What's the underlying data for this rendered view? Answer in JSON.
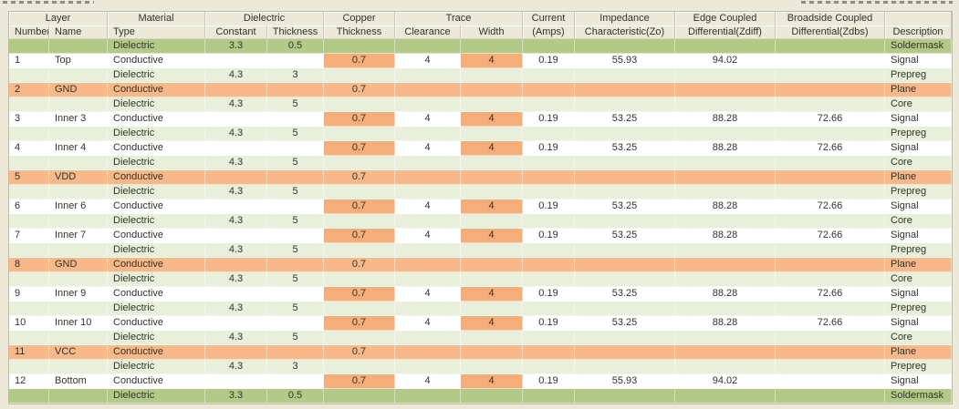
{
  "colors": {
    "header_beige": "#ece9d8",
    "plane_orange": "#f7b98a",
    "highlight_orange": "#f5ae79",
    "soldermask_green": "#b3c987",
    "dielectric_green": "#e8f0db",
    "row_white": "#ffffff",
    "text": "#33332b"
  },
  "table": {
    "group_headers": [
      {
        "label": "Layer",
        "span": 2
      },
      {
        "label": "Material",
        "span": 1
      },
      {
        "label": "Dielectric",
        "span": 2
      },
      {
        "label": "Copper",
        "span": 1
      },
      {
        "label": "Trace",
        "span": 2
      },
      {
        "label": "Current",
        "span": 1
      },
      {
        "label": "Impedance",
        "span": 1
      },
      {
        "label": "Edge Coupled",
        "span": 1
      },
      {
        "label": "Broadside Coupled",
        "span": 1
      },
      {
        "label": "",
        "span": 1
      }
    ],
    "sub_headers": [
      "Number",
      "Name",
      "Type",
      "Constant",
      "Thickness",
      "Thickness",
      "Clearance",
      "Width",
      "(Amps)",
      "Characteristic(Zo)",
      "Differential(Zdiff)",
      "Differential(Zdbs)",
      "Description"
    ],
    "rows": [
      {
        "style": "soldermask",
        "number": "",
        "name": "",
        "type": "Dielectric",
        "constant": "3.3",
        "dielectric_thickness": "0.5",
        "copper_thickness": "",
        "clearance": "",
        "width": "",
        "amps": "",
        "zo": "",
        "zdiff": "",
        "zdbs": "",
        "description": "Soldermask"
      },
      {
        "style": "signal",
        "number": "1",
        "name": "Top",
        "type": "Conductive",
        "constant": "",
        "dielectric_thickness": "",
        "copper_thickness": "0.7",
        "clearance": "4",
        "width": "4",
        "amps": "0.19",
        "zo": "55.93",
        "zdiff": "94.02",
        "zdbs": "",
        "description": "Signal"
      },
      {
        "style": "dielectric",
        "number": "",
        "name": "",
        "type": "Dielectric",
        "constant": "4.3",
        "dielectric_thickness": "3",
        "copper_thickness": "",
        "clearance": "",
        "width": "",
        "amps": "",
        "zo": "",
        "zdiff": "",
        "zdbs": "",
        "description": "Prepreg"
      },
      {
        "style": "plane",
        "number": "2",
        "name": "GND",
        "type": "Conductive",
        "constant": "",
        "dielectric_thickness": "",
        "copper_thickness": "0.7",
        "clearance": "",
        "width": "",
        "amps": "",
        "zo": "",
        "zdiff": "",
        "zdbs": "",
        "description": "Plane"
      },
      {
        "style": "dielectric",
        "number": "",
        "name": "",
        "type": "Dielectric",
        "constant": "4.3",
        "dielectric_thickness": "5",
        "copper_thickness": "",
        "clearance": "",
        "width": "",
        "amps": "",
        "zo": "",
        "zdiff": "",
        "zdbs": "",
        "description": "Core"
      },
      {
        "style": "signal",
        "number": "3",
        "name": "Inner 3",
        "type": "Conductive",
        "constant": "",
        "dielectric_thickness": "",
        "copper_thickness": "0.7",
        "clearance": "4",
        "width": "4",
        "amps": "0.19",
        "zo": "53.25",
        "zdiff": "88.28",
        "zdbs": "72.66",
        "description": "Signal"
      },
      {
        "style": "dielectric",
        "number": "",
        "name": "",
        "type": "Dielectric",
        "constant": "4.3",
        "dielectric_thickness": "5",
        "copper_thickness": "",
        "clearance": "",
        "width": "",
        "amps": "",
        "zo": "",
        "zdiff": "",
        "zdbs": "",
        "description": "Prepreg"
      },
      {
        "style": "signal",
        "number": "4",
        "name": "Inner 4",
        "type": "Conductive",
        "constant": "",
        "dielectric_thickness": "",
        "copper_thickness": "0.7",
        "clearance": "4",
        "width": "4",
        "amps": "0.19",
        "zo": "53.25",
        "zdiff": "88.28",
        "zdbs": "72.66",
        "description": "Signal"
      },
      {
        "style": "dielectric",
        "number": "",
        "name": "",
        "type": "Dielectric",
        "constant": "4.3",
        "dielectric_thickness": "5",
        "copper_thickness": "",
        "clearance": "",
        "width": "",
        "amps": "",
        "zo": "",
        "zdiff": "",
        "zdbs": "",
        "description": "Core"
      },
      {
        "style": "plane",
        "number": "5",
        "name": "VDD",
        "type": "Conductive",
        "constant": "",
        "dielectric_thickness": "",
        "copper_thickness": "0.7",
        "clearance": "",
        "width": "",
        "amps": "",
        "zo": "",
        "zdiff": "",
        "zdbs": "",
        "description": "Plane"
      },
      {
        "style": "dielectric",
        "number": "",
        "name": "",
        "type": "Dielectric",
        "constant": "4.3",
        "dielectric_thickness": "5",
        "copper_thickness": "",
        "clearance": "",
        "width": "",
        "amps": "",
        "zo": "",
        "zdiff": "",
        "zdbs": "",
        "description": "Prepreg"
      },
      {
        "style": "signal",
        "number": "6",
        "name": "Inner 6",
        "type": "Conductive",
        "constant": "",
        "dielectric_thickness": "",
        "copper_thickness": "0.7",
        "clearance": "4",
        "width": "4",
        "amps": "0.19",
        "zo": "53.25",
        "zdiff": "88.28",
        "zdbs": "72.66",
        "description": "Signal"
      },
      {
        "style": "dielectric",
        "number": "",
        "name": "",
        "type": "Dielectric",
        "constant": "4.3",
        "dielectric_thickness": "5",
        "copper_thickness": "",
        "clearance": "",
        "width": "",
        "amps": "",
        "zo": "",
        "zdiff": "",
        "zdbs": "",
        "description": "Core"
      },
      {
        "style": "signal",
        "number": "7",
        "name": "Inner 7",
        "type": "Conductive",
        "constant": "",
        "dielectric_thickness": "",
        "copper_thickness": "0.7",
        "clearance": "4",
        "width": "4",
        "amps": "0.19",
        "zo": "53.25",
        "zdiff": "88.28",
        "zdbs": "72.66",
        "description": "Signal"
      },
      {
        "style": "dielectric",
        "number": "",
        "name": "",
        "type": "Dielectric",
        "constant": "4.3",
        "dielectric_thickness": "5",
        "copper_thickness": "",
        "clearance": "",
        "width": "",
        "amps": "",
        "zo": "",
        "zdiff": "",
        "zdbs": "",
        "description": "Prepreg"
      },
      {
        "style": "plane",
        "number": "8",
        "name": "GND",
        "type": "Conductive",
        "constant": "",
        "dielectric_thickness": "",
        "copper_thickness": "0.7",
        "clearance": "",
        "width": "",
        "amps": "",
        "zo": "",
        "zdiff": "",
        "zdbs": "",
        "description": "Plane"
      },
      {
        "style": "dielectric",
        "number": "",
        "name": "",
        "type": "Dielectric",
        "constant": "4.3",
        "dielectric_thickness": "5",
        "copper_thickness": "",
        "clearance": "",
        "width": "",
        "amps": "",
        "zo": "",
        "zdiff": "",
        "zdbs": "",
        "description": "Core"
      },
      {
        "style": "signal",
        "number": "9",
        "name": "Inner 9",
        "type": "Conductive",
        "constant": "",
        "dielectric_thickness": "",
        "copper_thickness": "0.7",
        "clearance": "4",
        "width": "4",
        "amps": "0.19",
        "zo": "53.25",
        "zdiff": "88.28",
        "zdbs": "72.66",
        "description": "Signal"
      },
      {
        "style": "dielectric",
        "number": "",
        "name": "",
        "type": "Dielectric",
        "constant": "4.3",
        "dielectric_thickness": "5",
        "copper_thickness": "",
        "clearance": "",
        "width": "",
        "amps": "",
        "zo": "",
        "zdiff": "",
        "zdbs": "",
        "description": "Prepreg"
      },
      {
        "style": "signal",
        "number": "10",
        "name": "Inner 10",
        "type": "Conductive",
        "constant": "",
        "dielectric_thickness": "",
        "copper_thickness": "0.7",
        "clearance": "4",
        "width": "4",
        "amps": "0.19",
        "zo": "53.25",
        "zdiff": "88.28",
        "zdbs": "72.66",
        "description": "Signal"
      },
      {
        "style": "dielectric",
        "number": "",
        "name": "",
        "type": "Dielectric",
        "constant": "4.3",
        "dielectric_thickness": "5",
        "copper_thickness": "",
        "clearance": "",
        "width": "",
        "amps": "",
        "zo": "",
        "zdiff": "",
        "zdbs": "",
        "description": "Core"
      },
      {
        "style": "plane",
        "number": "11",
        "name": "VCC",
        "type": "Conductive",
        "constant": "",
        "dielectric_thickness": "",
        "copper_thickness": "0.7",
        "clearance": "",
        "width": "",
        "amps": "",
        "zo": "",
        "zdiff": "",
        "zdbs": "",
        "description": "Plane"
      },
      {
        "style": "dielectric",
        "number": "",
        "name": "",
        "type": "Dielectric",
        "constant": "4.3",
        "dielectric_thickness": "3",
        "copper_thickness": "",
        "clearance": "",
        "width": "",
        "amps": "",
        "zo": "",
        "zdiff": "",
        "zdbs": "",
        "description": "Prepreg"
      },
      {
        "style": "signal",
        "number": "12",
        "name": "Bottom",
        "type": "Conductive",
        "constant": "",
        "dielectric_thickness": "",
        "copper_thickness": "0.7",
        "clearance": "4",
        "width": "4",
        "amps": "0.19",
        "zo": "55.93",
        "zdiff": "94.02",
        "zdbs": "",
        "description": "Signal"
      },
      {
        "style": "soldermask",
        "number": "",
        "name": "",
        "type": "Dielectric",
        "constant": "3.3",
        "dielectric_thickness": "0.5",
        "copper_thickness": "",
        "clearance": "",
        "width": "",
        "amps": "",
        "zo": "",
        "zdiff": "",
        "zdbs": "",
        "description": "Soldermask"
      }
    ]
  }
}
